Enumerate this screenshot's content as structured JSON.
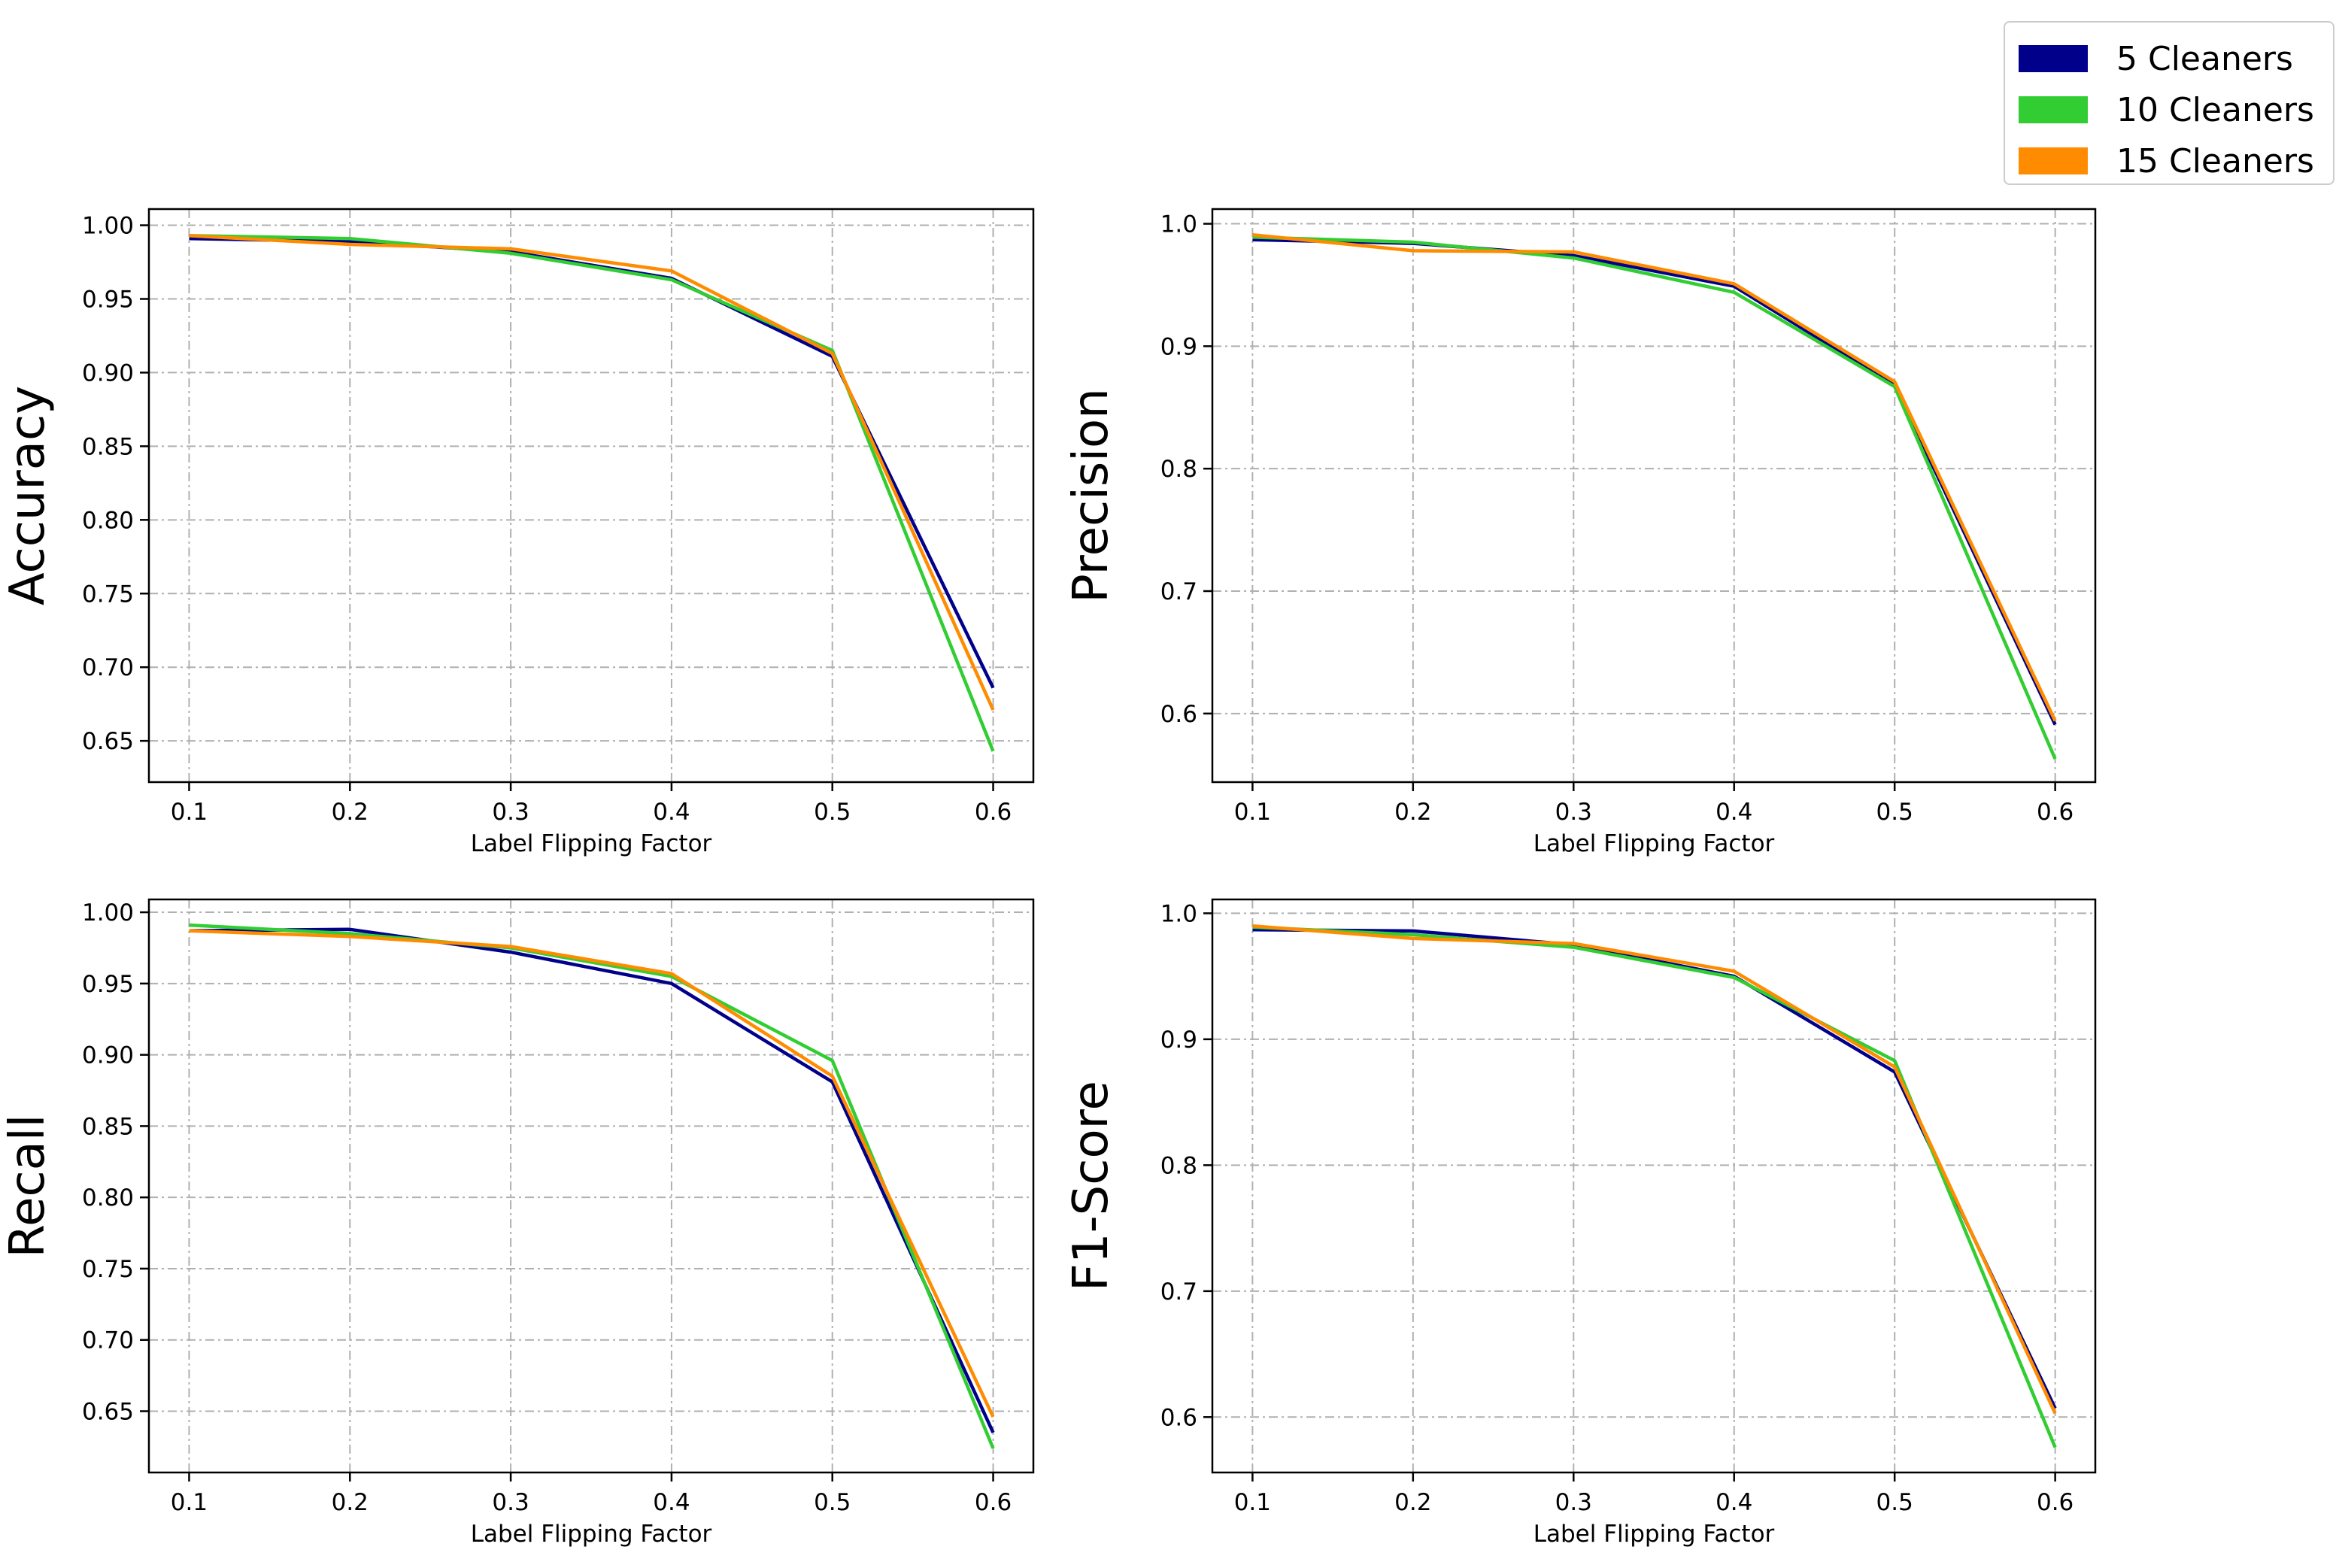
{
  "chart_data": [
    {
      "type": "line",
      "ylabel": "Accuracy",
      "xlabel": "Label Flipping Factor",
      "x": [
        0.1,
        0.2,
        0.3,
        0.4,
        0.5,
        0.6
      ],
      "ylim": [
        0.622,
        1.011
      ],
      "yticks": [
        "0.65",
        "0.70",
        "0.75",
        "0.80",
        "0.85",
        "0.90",
        "0.95",
        "1.00"
      ],
      "ytick_values": [
        0.65,
        0.7,
        0.75,
        0.8,
        0.85,
        0.9,
        0.95,
        1.0
      ],
      "series": [
        {
          "name": "5 Cleaners",
          "values": [
            0.991,
            0.989,
            0.982,
            0.964,
            0.911,
            0.686
          ]
        },
        {
          "name": "10 Cleaners",
          "values": [
            0.993,
            0.991,
            0.981,
            0.963,
            0.915,
            0.643
          ]
        },
        {
          "name": "15 Cleaners",
          "values": [
            0.993,
            0.987,
            0.984,
            0.969,
            0.913,
            0.671
          ]
        }
      ]
    },
    {
      "type": "line",
      "ylabel": "Precision",
      "xlabel": "Label Flipping Factor",
      "x": [
        0.1,
        0.2,
        0.3,
        0.4,
        0.5,
        0.6
      ],
      "ylim": [
        0.544,
        1.012
      ],
      "yticks": [
        "0.6",
        "0.7",
        "0.8",
        "0.9",
        "1.0"
      ],
      "ytick_values": [
        0.6,
        0.7,
        0.8,
        0.9,
        1.0
      ],
      "series": [
        {
          "name": "5 Cleaners",
          "values": [
            0.987,
            0.984,
            0.974,
            0.949,
            0.868,
            0.591
          ]
        },
        {
          "name": "10 Cleaners",
          "values": [
            0.989,
            0.985,
            0.972,
            0.944,
            0.867,
            0.563
          ]
        },
        {
          "name": "15 Cleaners",
          "values": [
            0.991,
            0.978,
            0.977,
            0.951,
            0.871,
            0.594
          ]
        }
      ]
    },
    {
      "type": "line",
      "ylabel": "Recall",
      "xlabel": "Label Flipping Factor",
      "x": [
        0.1,
        0.2,
        0.3,
        0.4,
        0.5,
        0.6
      ],
      "ylim": [
        0.607,
        1.009
      ],
      "yticks": [
        "0.65",
        "0.70",
        "0.75",
        "0.80",
        "0.85",
        "0.90",
        "0.95",
        "1.00"
      ],
      "ytick_values": [
        0.65,
        0.7,
        0.75,
        0.8,
        0.85,
        0.9,
        0.95,
        1.0
      ],
      "series": [
        {
          "name": "5 Cleaners",
          "values": [
            0.987,
            0.988,
            0.972,
            0.95,
            0.881,
            0.635
          ]
        },
        {
          "name": "10 Cleaners",
          "values": [
            0.991,
            0.985,
            0.975,
            0.955,
            0.896,
            0.624
          ]
        },
        {
          "name": "15 Cleaners",
          "values": [
            0.987,
            0.983,
            0.976,
            0.957,
            0.885,
            0.646
          ]
        }
      ]
    },
    {
      "type": "line",
      "ylabel": "F1-Score",
      "xlabel": "Label Flipping Factor",
      "x": [
        0.1,
        0.2,
        0.3,
        0.4,
        0.5,
        0.6
      ],
      "ylim": [
        0.556,
        1.011
      ],
      "yticks": [
        "0.6",
        "0.7",
        "0.8",
        "0.9",
        "1.0"
      ],
      "ytick_values": [
        0.6,
        0.7,
        0.8,
        0.9,
        1.0
      ],
      "series": [
        {
          "name": "5 Cleaners",
          "values": [
            0.987,
            0.986,
            0.975,
            0.95,
            0.874,
            0.607
          ]
        },
        {
          "name": "10 Cleaners",
          "values": [
            0.989,
            0.983,
            0.973,
            0.949,
            0.883,
            0.576
          ]
        },
        {
          "name": "15 Cleaners",
          "values": [
            0.99,
            0.98,
            0.976,
            0.954,
            0.878,
            0.603
          ]
        }
      ]
    }
  ],
  "xticks": [
    "0.1",
    "0.2",
    "0.3",
    "0.4",
    "0.5",
    "0.6"
  ],
  "legend": {
    "placement": "top-right",
    "entries": [
      {
        "label": "5 Cleaners",
        "color": "#00008b"
      },
      {
        "label": "10 Cleaners",
        "color": "#32cd32"
      },
      {
        "label": "15 Cleaners",
        "color": "#ff8c00"
      }
    ]
  },
  "grid": true
}
